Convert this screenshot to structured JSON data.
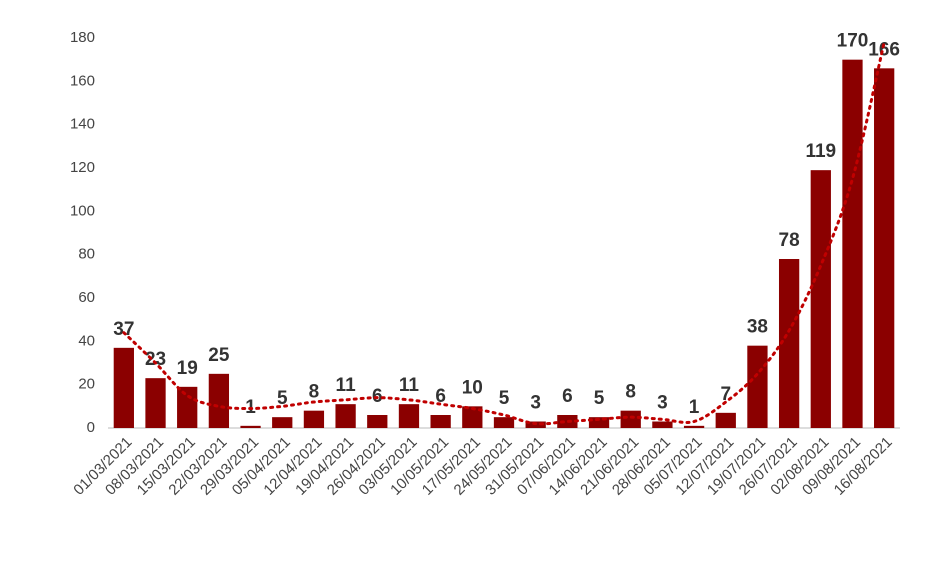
{
  "chart_data": {
    "type": "bar",
    "categories": [
      "01/03/2021",
      "08/03/2021",
      "15/03/2021",
      "22/03/2021",
      "29/03/2021",
      "05/04/2021",
      "12/04/2021",
      "19/04/2021",
      "26/04/2021",
      "03/05/2021",
      "10/05/2021",
      "17/05/2021",
      "24/05/2021",
      "31/05/2021",
      "07/06/2021",
      "14/06/2021",
      "21/06/2021",
      "28/06/2021",
      "05/07/2021",
      "12/07/2021",
      "19/07/2021",
      "26/07/2021",
      "02/08/2021",
      "09/08/2021",
      "16/08/2021"
    ],
    "values": [
      37,
      23,
      19,
      25,
      1,
      5,
      8,
      11,
      6,
      11,
      6,
      10,
      5,
      3,
      6,
      5,
      8,
      3,
      1,
      7,
      38,
      78,
      119,
      170,
      166
    ],
    "trend": [
      44,
      30,
      15,
      10,
      9,
      10,
      12,
      13,
      14,
      13,
      11,
      9,
      6,
      2,
      3,
      4,
      5,
      4,
      3,
      12,
      25,
      45,
      75,
      115,
      178
    ],
    "color": "#8b0000",
    "trend_color": "#c00000",
    "ylim": [
      0,
      180
    ],
    "yticks": [
      0,
      20,
      40,
      60,
      80,
      100,
      120,
      140,
      160,
      180
    ],
    "grid": false
  }
}
